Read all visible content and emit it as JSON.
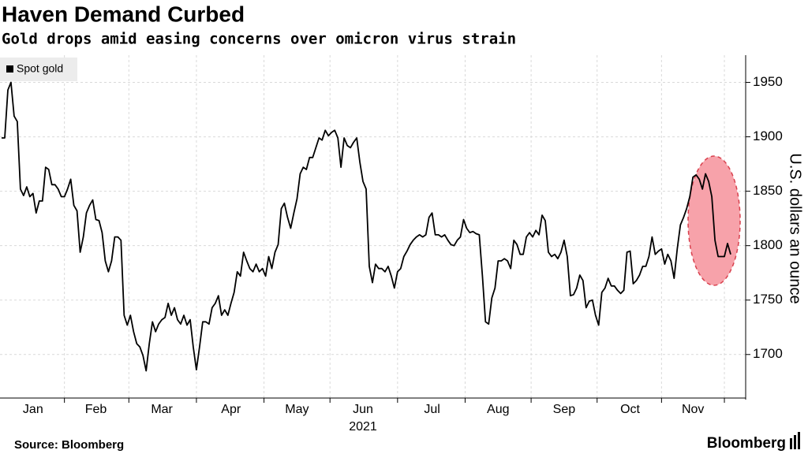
{
  "chart_data": {
    "type": "line",
    "title": "Haven Demand Curbed",
    "subtitle": "Gold drops amid easing concerns over omicron virus strain",
    "y_label": "U.S. dollars an ounce",
    "year_label": "2021",
    "source": "Source: Bloomberg",
    "brand": "Bloomberg",
    "categories": [
      null,
      null,
      null,
      null,
      null,
      null,
      null,
      null,
      null,
      null,
      "Jan",
      null,
      null,
      null,
      null,
      null,
      null,
      null,
      null,
      null,
      null,
      null,
      null,
      null,
      null,
      null,
      null,
      null,
      null,
      null,
      "Feb",
      null,
      null,
      null,
      null,
      null,
      null,
      null,
      null,
      null,
      null,
      null,
      null,
      null,
      null,
      null,
      null,
      null,
      null,
      null,
      null,
      "Mar",
      null,
      null,
      null,
      null,
      null,
      null,
      null,
      null,
      null,
      null,
      null,
      null,
      null,
      null,
      null,
      null,
      null,
      null,
      null,
      null,
      null,
      "Apr",
      null,
      null,
      null,
      null,
      null,
      null,
      null,
      null,
      null,
      null,
      null,
      null,
      null,
      null,
      null,
      null,
      null,
      null,
      null,
      null,
      "May",
      null,
      null,
      null,
      null,
      null,
      null,
      null,
      null,
      null,
      null,
      null,
      null,
      null,
      null,
      null,
      null,
      null,
      null,
      null,
      null,
      "Jun",
      null,
      null,
      null,
      null,
      null,
      null,
      null,
      null,
      null,
      null,
      null,
      null,
      null,
      null,
      null,
      null,
      null,
      null,
      null,
      null,
      null,
      "Jul",
      null,
      null,
      null,
      null,
      null,
      null,
      null,
      null,
      null,
      null,
      null,
      null,
      null,
      null,
      null,
      null,
      null,
      null,
      null,
      null,
      "Aug",
      null,
      null,
      null,
      null,
      null,
      null,
      null,
      null,
      null,
      null,
      null,
      null,
      null,
      null,
      null,
      null,
      null,
      null,
      null,
      null,
      "Sep",
      null,
      null,
      null,
      null,
      null,
      null,
      null,
      null,
      null,
      null,
      null,
      null,
      null,
      null,
      null,
      null,
      null,
      null,
      null,
      null,
      "Oct",
      null,
      null,
      null,
      null,
      null,
      null,
      null,
      null,
      null,
      null,
      null,
      null,
      null,
      null,
      null,
      null,
      null,
      null,
      null,
      "Nov",
      null,
      null,
      null,
      null,
      null,
      null,
      null,
      null,
      null,
      null,
      null,
      null
    ],
    "series": [
      {
        "name": "Spot gold",
        "color": "#000000",
        "values": [
          1899,
          1899,
          1943,
          1950,
          1919,
          1914,
          1852,
          1846,
          1854,
          1845,
          1848,
          1830,
          1841,
          1841,
          1872,
          1870,
          1856,
          1856,
          1852,
          1845,
          1845,
          1852,
          1861,
          1837,
          1832,
          1794,
          1808,
          1830,
          1837,
          1842,
          1824,
          1823,
          1812,
          1786,
          1776,
          1786,
          1808,
          1808,
          1805,
          1736,
          1727,
          1736,
          1721,
          1710,
          1707,
          1699,
          1685,
          1710,
          1730,
          1721,
          1728,
          1732,
          1734,
          1747,
          1736,
          1743,
          1732,
          1728,
          1736,
          1727,
          1732,
          1707,
          1686,
          1707,
          1730,
          1730,
          1728,
          1743,
          1747,
          1754,
          1736,
          1741,
          1736,
          1747,
          1757,
          1776,
          1772,
          1794,
          1786,
          1779,
          1776,
          1783,
          1776,
          1779,
          1772,
          1790,
          1779,
          1794,
          1801,
          1834,
          1839,
          1826,
          1816,
          1830,
          1843,
          1866,
          1872,
          1870,
          1881,
          1881,
          1890,
          1899,
          1897,
          1906,
          1901,
          1904,
          1906,
          1899,
          1872,
          1899,
          1892,
          1890,
          1895,
          1899,
          1877,
          1859,
          1852,
          1781,
          1766,
          1783,
          1779,
          1779,
          1776,
          1781,
          1772,
          1761,
          1776,
          1779,
          1790,
          1795,
          1801,
          1805,
          1808,
          1810,
          1808,
          1810,
          1826,
          1830,
          1810,
          1810,
          1808,
          1810,
          1805,
          1801,
          1800,
          1805,
          1808,
          1824,
          1816,
          1812,
          1813,
          1811,
          1810,
          1772,
          1730,
          1728,
          1752,
          1761,
          1786,
          1786,
          1788,
          1786,
          1779,
          1805,
          1801,
          1792,
          1792,
          1808,
          1812,
          1808,
          1814,
          1810,
          1828,
          1823,
          1794,
          1790,
          1792,
          1788,
          1794,
          1805,
          1790,
          1754,
          1755,
          1761,
          1773,
          1768,
          1743,
          1749,
          1750,
          1736,
          1727,
          1757,
          1761,
          1770,
          1763,
          1763,
          1759,
          1756,
          1759,
          1794,
          1795,
          1765,
          1768,
          1773,
          1781,
          1781,
          1790,
          1808,
          1792,
          1795,
          1797,
          1783,
          1792,
          1786,
          1770,
          1797,
          1819,
          1826,
          1834,
          1845,
          1863,
          1865,
          1861,
          1852,
          1866,
          1859,
          1845,
          1805,
          1790,
          1790,
          1790,
          1802,
          1792
        ]
      }
    ],
    "ylim": [
      1660,
      1975
    ],
    "yticks": [
      1700,
      1750,
      1800,
      1850,
      1900,
      1950
    ],
    "grid": true
  }
}
